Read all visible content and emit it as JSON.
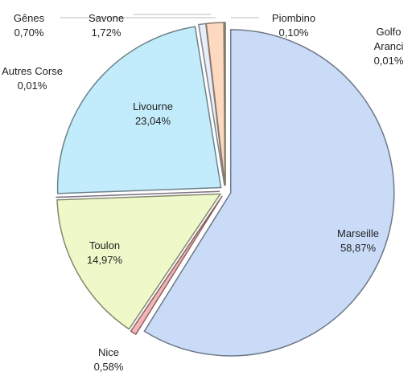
{
  "chart_data": {
    "type": "pie",
    "categories": [
      "Marseille",
      "Nice",
      "Toulon",
      "Autres Corse",
      "Livourne",
      "Gênes",
      "Savone",
      "Piombino",
      "Golfo Aranci"
    ],
    "values": [
      58.87,
      0.58,
      14.97,
      0.01,
      23.04,
      0.7,
      1.72,
      0.1,
      0.01
    ],
    "value_labels": [
      "58,87%",
      "0,58%",
      "14,97%",
      "0,01%",
      "23,04%",
      "0,70%",
      "1,72%",
      "0,10%",
      "0,01%"
    ],
    "colors": [
      "#c9dbf7",
      "#f5b5b5",
      "#eef8c8",
      "#e6d3f0",
      "#c2ecfb",
      "#e8eef8",
      "#fcd9bf",
      "#d8ecd0",
      "#f0e0c0"
    ]
  }
}
